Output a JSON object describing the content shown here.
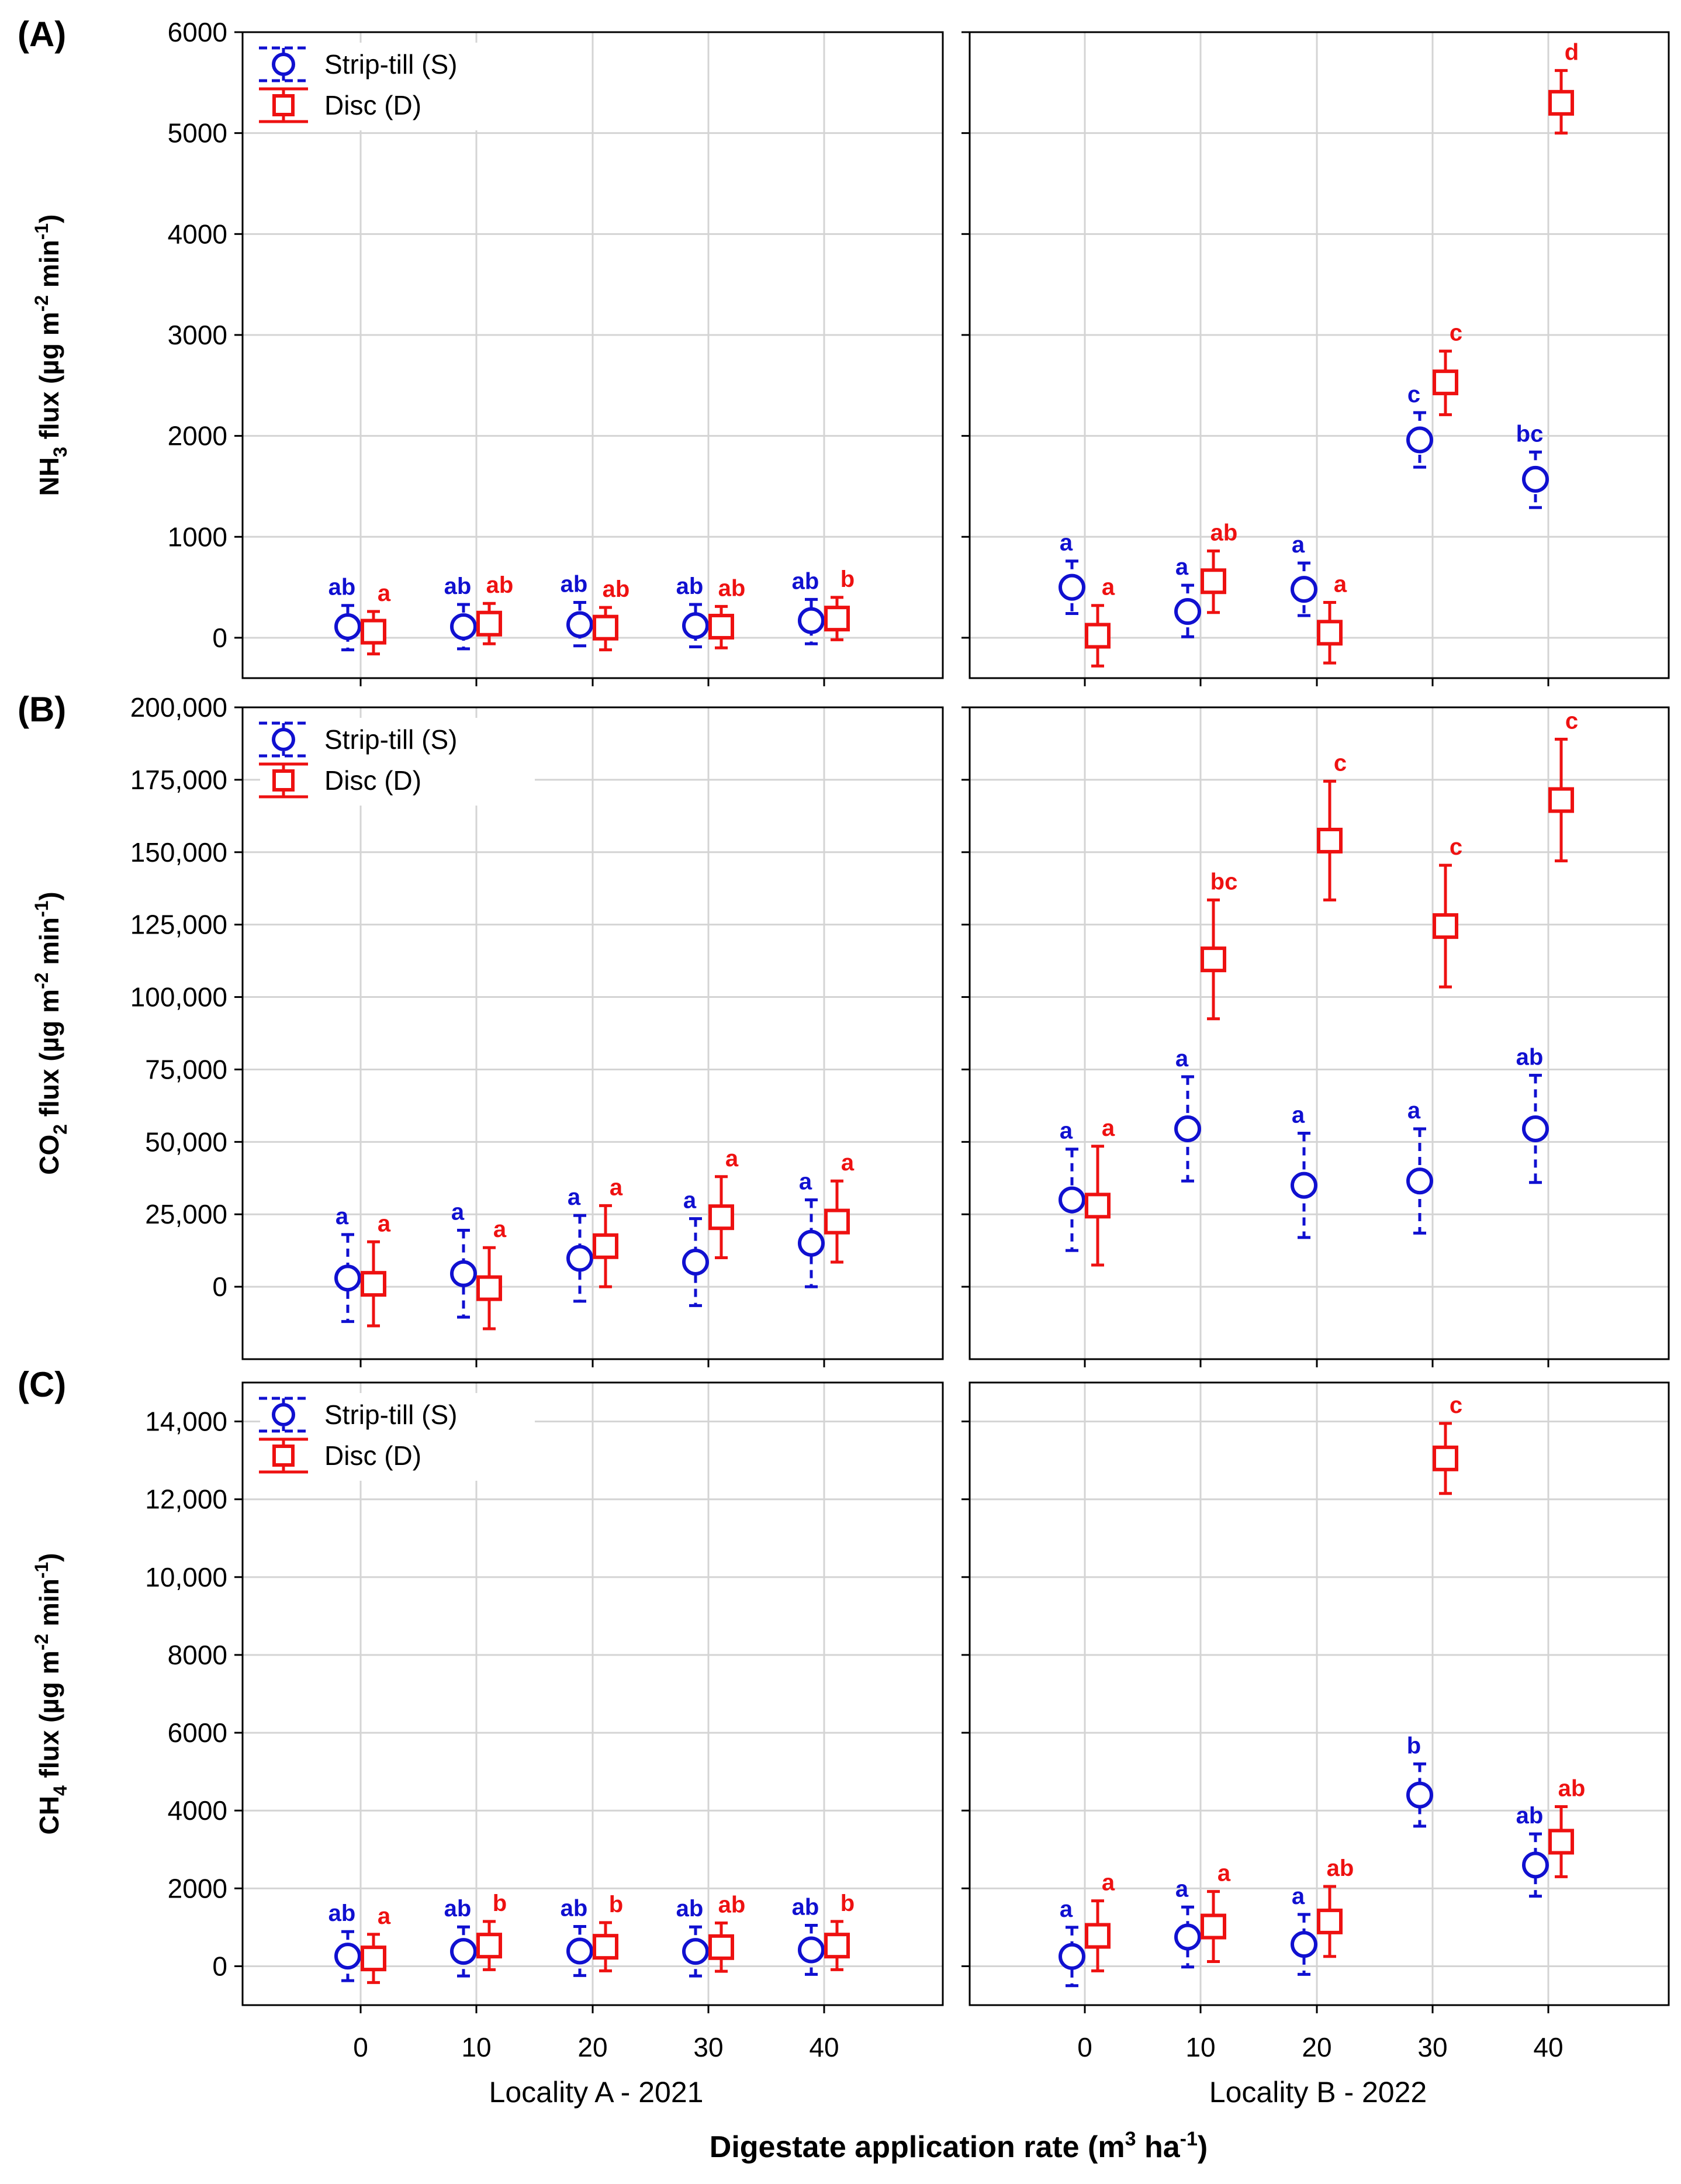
{
  "colors": {
    "strip": "#1010d0",
    "disc": "#ee1111",
    "grid": "#d4d4d4",
    "axis": "#000000"
  },
  "figure": {
    "xlabel_main": "Digestate application rate (m",
    "xlabel_sup": "3",
    "xlabel_main2": " ha",
    "xlabel_sup2": "-1",
    "xlabel_end": ")"
  },
  "localities": [
    "Locality A - 2021",
    "Locality B - 2022"
  ],
  "chart_data": [
    {
      "panel": "(A)",
      "type": "scatter",
      "ylabel": {
        "pre": "NH",
        "sub": "3",
        "post": " flux (µg m",
        "sup1": "-2",
        "mid": " min",
        "sup2": "-1",
        "end": ")"
      },
      "ylim": [
        -400,
        6000
      ],
      "yticks": [
        0,
        1000,
        2000,
        3000,
        4000,
        5000,
        6000
      ],
      "ytick_labels": [
        "0",
        "1000",
        "2000",
        "3000",
        "4000",
        "5000",
        "6000"
      ],
      "x": [
        0,
        10,
        20,
        30,
        40
      ],
      "legend": [
        "Strip-till (S)",
        "Disc (D)"
      ],
      "locality_a": {
        "strip": {
          "mean": [
            110,
            110,
            130,
            120,
            170
          ],
          "lo": [
            -120,
            -110,
            -80,
            -90,
            -60
          ],
          "hi": [
            320,
            330,
            350,
            330,
            380
          ],
          "letters": [
            "ab",
            "ab",
            "ab",
            "ab",
            "ab"
          ]
        },
        "disc": {
          "mean": [
            60,
            140,
            100,
            110,
            190
          ],
          "lo": [
            -160,
            -60,
            -120,
            -100,
            -20
          ],
          "hi": [
            260,
            340,
            300,
            310,
            400
          ],
          "letters": [
            "a",
            "ab",
            "ab",
            "ab",
            "b"
          ]
        }
      },
      "locality_b": {
        "strip": {
          "mean": [
            500,
            260,
            480,
            1960,
            1570
          ],
          "lo": [
            240,
            10,
            220,
            1690,
            1290
          ],
          "hi": [
            760,
            520,
            740,
            2230,
            1840
          ],
          "letters": [
            "a",
            "a",
            "a",
            "c",
            "bc"
          ]
        },
        "disc": {
          "mean": [
            20,
            560,
            50,
            2530,
            5300
          ],
          "lo": [
            -280,
            250,
            -250,
            2210,
            5000
          ],
          "hi": [
            320,
            860,
            350,
            2840,
            5620
          ],
          "letters": [
            "a",
            "ab",
            "a",
            "c",
            "d"
          ]
        }
      }
    },
    {
      "panel": "(B)",
      "type": "scatter",
      "ylabel": {
        "pre": "CO",
        "sub": "2",
        "post": " flux (µg m",
        "sup1": "-2",
        "mid": " min",
        "sup2": "-1",
        "end": ")"
      },
      "ylim": [
        -25000,
        200000
      ],
      "yticks": [
        0,
        25000,
        50000,
        75000,
        100000,
        125000,
        150000,
        175000,
        200000
      ],
      "ytick_labels": [
        "0",
        "25,000",
        "50,000",
        "75,000",
        "100,000",
        "125,000",
        "150,000",
        "175,000",
        "200,000"
      ],
      "x": [
        0,
        10,
        20,
        30,
        40
      ],
      "legend": [
        "Strip-till (S)",
        "Disc (D)"
      ],
      "locality_a": {
        "strip": {
          "mean": [
            3000,
            4500,
            9800,
            8500,
            15000
          ],
          "lo": [
            -12000,
            -10500,
            -5000,
            -6500,
            0
          ],
          "hi": [
            18000,
            19500,
            24600,
            23500,
            30000
          ],
          "letters": [
            "a",
            "a",
            "a",
            "a",
            "a"
          ]
        },
        "disc": {
          "mean": [
            1000,
            -500,
            14000,
            24000,
            22500
          ],
          "lo": [
            -13500,
            -14500,
            0,
            10000,
            8500
          ],
          "hi": [
            15500,
            13500,
            28000,
            38000,
            36500
          ],
          "letters": [
            "a",
            "a",
            "a",
            "a",
            "a"
          ]
        }
      },
      "locality_b": {
        "strip": {
          "mean": [
            30000,
            54500,
            35000,
            36500,
            54500
          ],
          "lo": [
            12500,
            36500,
            17000,
            18500,
            36000
          ],
          "hi": [
            47500,
            72500,
            53000,
            54500,
            73000
          ],
          "letters": [
            "a",
            "a",
            "a",
            "a",
            "ab"
          ]
        },
        "disc": {
          "mean": [
            28000,
            113000,
            154000,
            124500,
            168000
          ],
          "lo": [
            7500,
            92500,
            133500,
            103500,
            147000
          ],
          "hi": [
            48500,
            133500,
            174500,
            145500,
            189000
          ],
          "letters": [
            "a",
            "bc",
            "c",
            "c",
            "c"
          ]
        }
      }
    },
    {
      "panel": "(C)",
      "type": "scatter",
      "ylabel": {
        "pre": "CH",
        "sub": "4",
        "post": " flux (µg m",
        "sup1": "-2",
        "mid": " min",
        "sup2": "-1",
        "end": ")"
      },
      "ylim": [
        -1000,
        15000
      ],
      "yticks": [
        0,
        2000,
        4000,
        6000,
        8000,
        10000,
        12000,
        14000
      ],
      "ytick_labels": [
        "0",
        "2000",
        "4000",
        "6000",
        "8000",
        "10,000",
        "12,000",
        "14,000"
      ],
      "x": [
        0,
        10,
        20,
        30,
        40
      ],
      "legend": [
        "Strip-till (S)",
        "Disc (D)"
      ],
      "locality_a": {
        "strip": {
          "mean": [
            260,
            380,
            390,
            380,
            420
          ],
          "lo": [
            -370,
            -250,
            -240,
            -250,
            -210
          ],
          "hi": [
            890,
            1010,
            1020,
            1010,
            1050
          ],
          "letters": [
            "ab",
            "ab",
            "ab",
            "ab",
            "ab"
          ]
        },
        "disc": {
          "mean": [
            200,
            530,
            500,
            490,
            530
          ],
          "lo": [
            -420,
            -90,
            -120,
            -130,
            -90
          ],
          "hi": [
            820,
            1150,
            1120,
            1110,
            1150
          ],
          "letters": [
            "a",
            "b",
            "b",
            "ab",
            "b"
          ]
        }
      },
      "locality_b": {
        "strip": {
          "mean": [
            250,
            750,
            560,
            4400,
            2600
          ],
          "lo": [
            -500,
            -20,
            -210,
            3600,
            1800
          ],
          "hi": [
            1000,
            1520,
            1330,
            5200,
            3400
          ],
          "letters": [
            "a",
            "a",
            "a",
            "b",
            "ab"
          ]
        },
        "disc": {
          "mean": [
            780,
            1020,
            1150,
            13050,
            3200
          ],
          "lo": [
            -120,
            120,
            250,
            12150,
            2300
          ],
          "hi": [
            1680,
            1920,
            2050,
            13950,
            4100
          ],
          "letters": [
            "a",
            "a",
            "ab",
            "c",
            "ab"
          ]
        }
      }
    }
  ]
}
